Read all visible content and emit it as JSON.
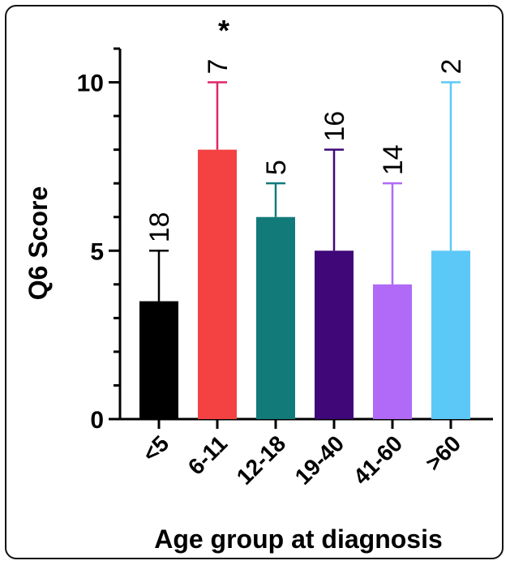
{
  "chart_data": {
    "type": "bar",
    "xlabel": "Age group at diagnosis",
    "ylabel": "Q6 Score",
    "ylim": [
      0,
      11
    ],
    "yticks_major": [
      0,
      5,
      10
    ],
    "ytick_labels": [
      "0",
      "5",
      "10"
    ],
    "categories": [
      "<5",
      "6-11",
      "12-18",
      "19-40",
      "41-60",
      ">60"
    ],
    "values": [
      3.5,
      8,
      6,
      5,
      4,
      5
    ],
    "error_upper": [
      5,
      10,
      7,
      8,
      7,
      10
    ],
    "n_labels": [
      "18",
      "7",
      "5",
      "16",
      "14",
      "2"
    ],
    "significance": [
      "",
      "*",
      "",
      "",
      "",
      ""
    ],
    "bar_colors": [
      "#000000",
      "#f44242",
      "#137a7a",
      "#3f0777",
      "#b06af7",
      "#5cc8f8"
    ],
    "error_colors": [
      "#000000",
      "#e0246b",
      "#137a7a",
      "#3f0777",
      "#b06af7",
      "#5cc8f8"
    ],
    "grid": false,
    "legend": "none"
  }
}
